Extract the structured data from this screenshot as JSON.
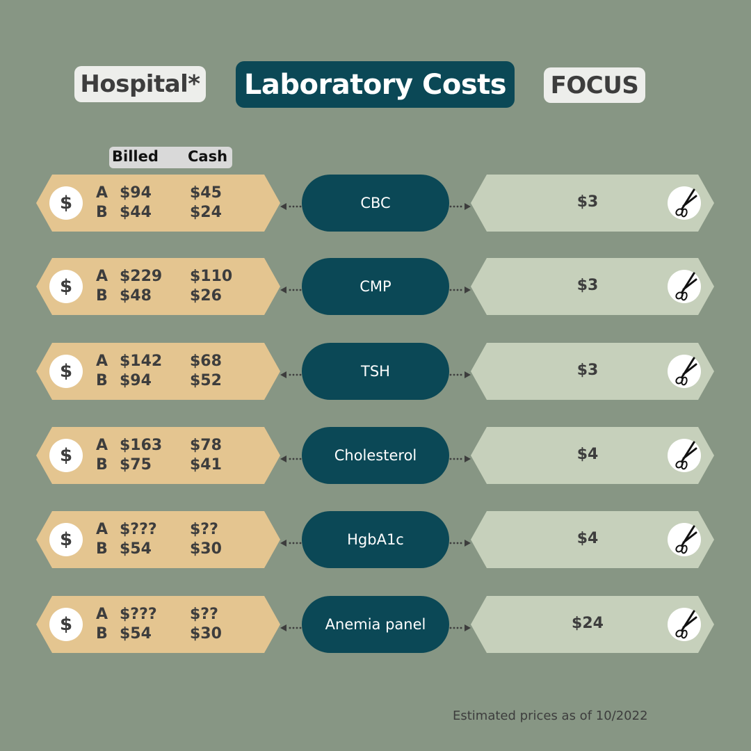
{
  "header": {
    "left_label": "Hospital*",
    "title": "Laboratory Costs",
    "right_label": "FOCUS"
  },
  "column_headers": {
    "billed": "Billed",
    "cash": "Cash"
  },
  "icons": {
    "hospital": "dollar-icon",
    "focus": "scissors-icon",
    "dollar_glyph": "$"
  },
  "rows": [
    {
      "test": "CBC",
      "hospital": {
        "A": {
          "label": "A",
          "billed": "$94",
          "cash": "$45"
        },
        "B": {
          "label": "B",
          "billed": "$44",
          "cash": "$24"
        }
      },
      "focus_price": "$3"
    },
    {
      "test": "CMP",
      "hospital": {
        "A": {
          "label": "A",
          "billed": "$229",
          "cash": "$110"
        },
        "B": {
          "label": "B",
          "billed": "$48",
          "cash": "$26"
        }
      },
      "focus_price": "$3"
    },
    {
      "test": "TSH",
      "hospital": {
        "A": {
          "label": "A",
          "billed": "$142",
          "cash": "$68"
        },
        "B": {
          "label": "B",
          "billed": "$94",
          "cash": "$52"
        }
      },
      "focus_price": "$3"
    },
    {
      "test": "Cholesterol",
      "hospital": {
        "A": {
          "label": "A",
          "billed": "$163",
          "cash": "$78"
        },
        "B": {
          "label": "B",
          "billed": "$75",
          "cash": "$41"
        }
      },
      "focus_price": "$4"
    },
    {
      "test": "HgbA1c",
      "hospital": {
        "A": {
          "label": "A",
          "billed": "$???",
          "cash": "$??"
        },
        "B": {
          "label": "B",
          "billed": "$54",
          "cash": "$30"
        }
      },
      "focus_price": "$4"
    },
    {
      "test": "Anemia panel",
      "hospital": {
        "A": {
          "label": "A",
          "billed": "$???",
          "cash": "$??"
        },
        "B": {
          "label": "B",
          "billed": "$54",
          "cash": "$30"
        }
      },
      "focus_price": "$24"
    }
  ],
  "footer": "Estimated prices as of 10/2022",
  "colors": {
    "background": "#879684",
    "hospital_panel": "#e4c590",
    "focus_panel": "#c6d0bb",
    "test_pill": "#0b4856",
    "text_dark": "#3d3d3d",
    "header_pill_light": "#edeeeb"
  }
}
